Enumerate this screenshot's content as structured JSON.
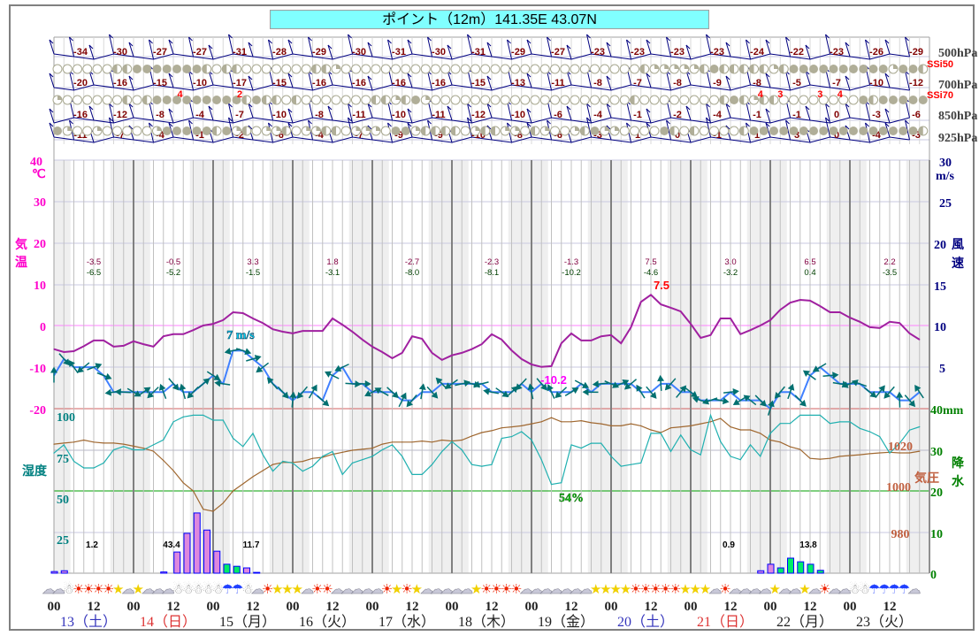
{
  "title": "ポイント（12m）141.35E 43.07N",
  "upper_air": {
    "levels": [
      {
        "label": "500hPa",
        "temps": [
          -34,
          -30,
          -27,
          -27,
          -31,
          -28,
          -29,
          -30,
          -31,
          -30,
          -31,
          -29,
          -27,
          -23,
          -23,
          -23,
          -23,
          -24,
          -22,
          -23,
          -26,
          -29
        ]
      },
      {
        "label": "700hPa",
        "temps": [
          -20,
          -16,
          -15,
          -10,
          -17,
          -15,
          -16,
          -16,
          -16,
          -16,
          -15,
          -13,
          -11,
          -8,
          -7,
          -8,
          -9,
          -8,
          -5,
          -7,
          -10,
          -12
        ]
      },
      {
        "label": "850hPa",
        "temps": [
          -16,
          -12,
          -8,
          -4,
          -7,
          -10,
          -8,
          -11,
          -10,
          -11,
          -12,
          -10,
          -6,
          -4,
          -1,
          -2,
          -4,
          -1,
          -1,
          0,
          -3,
          -6
        ]
      },
      {
        "label": "925hPa",
        "temps": [
          -11,
          -7,
          -4,
          -1,
          -2,
          -6,
          -4,
          -7,
          -9,
          -9,
          -10,
          -8,
          -6,
          -3,
          1,
          0,
          -1,
          1,
          3,
          0,
          -4,
          -3
        ]
      }
    ],
    "ssi_labels": [
      "SSi50",
      "SSi70"
    ],
    "stability_rows": [
      "oooooohhfffffffhohhooooooohhqoooooooooooooooooooooooooooooohqqqqqhfhhhhhqhffffffffffqffhooooo",
      "qoooooohohfffffffffhfhhohooooooohhqhfqoooooooooooooooooooohoooooooohfhqhhoooooooofhfffffffhfhhooooo",
      "fqooqoooooqfffffhfqhoqqhoqqhhoqqqoffqhhhhoqhhqqohqooqhfqqoooofhohoooohfffffffffffffffffhqhqhhq"
    ],
    "ssi_values": [
      {
        "hour": 38,
        "value": "4"
      },
      {
        "hour": 56,
        "value": "2"
      },
      {
        "hour": 213,
        "value": "4"
      },
      {
        "hour": 219,
        "value": "3"
      },
      {
        "hour": 231,
        "value": "3"
      },
      {
        "hour": 237,
        "value": "4"
      }
    ]
  },
  "axes": {
    "temp": {
      "ticks": [
        "40",
        "30",
        "20",
        "10",
        "0",
        "-10",
        "-20"
      ],
      "unit": "℃",
      "label": [
        "気",
        "温"
      ],
      "color": "#ff00cc"
    },
    "humidity": {
      "ticks": [
        "100",
        "75",
        "50",
        "25"
      ],
      "label": "湿度",
      "color": "#008080"
    },
    "wind": {
      "ticks": [
        "30",
        "25",
        "20",
        "15",
        "10",
        "5"
      ],
      "unit": "m/s",
      "label": [
        "風",
        "速"
      ],
      "color": "#000080"
    },
    "precip": {
      "ticks": [
        "40mm",
        "30",
        "20",
        "10",
        "0"
      ],
      "label": [
        "降",
        "水"
      ],
      "color": "#008000"
    },
    "pressure": {
      "ticks": [
        "1020",
        "1000",
        "980"
      ],
      "label": "気圧",
      "color": "#c06040"
    }
  },
  "annotations": {
    "max_temp": "7.5",
    "min_temp": "-10.2",
    "max_wind": "7 m/s",
    "min_humidity": "54%"
  },
  "daily": [
    {
      "max": "-3.5",
      "min": "-6.5",
      "precip": "1.2"
    },
    {
      "max": "-0.5",
      "min": "-5.2",
      "precip": "43.4"
    },
    {
      "max": "3.3",
      "min": "-1.5",
      "precip": "11.7"
    },
    {
      "max": "1.8",
      "min": "-3.1",
      "precip": ""
    },
    {
      "max": "-2.7",
      "min": "-8.0",
      "precip": ""
    },
    {
      "max": "-2.3",
      "min": "-8.1",
      "precip": ""
    },
    {
      "max": "-1.3",
      "min": "-10.2",
      "precip": ""
    },
    {
      "max": "7.5",
      "min": "-4.6",
      "precip": ""
    },
    {
      "max": "3.0",
      "min": "-3.2",
      "precip": "0.9"
    },
    {
      "max": "6.5",
      "min": "0.4",
      "precip": "13.8"
    },
    {
      "max": "2.2",
      "min": "-3.5",
      "precip": ""
    }
  ],
  "x_axis": {
    "hour_labels": [
      "00",
      "12"
    ],
    "days": [
      {
        "label": "13（土）",
        "color": "#3333bb"
      },
      {
        "label": "14（日）",
        "color": "#dd3333"
      },
      {
        "label": "15（月）",
        "color": "#202020"
      },
      {
        "label": "16（火）",
        "color": "#202020"
      },
      {
        "label": "17（水）",
        "color": "#202020"
      },
      {
        "label": "18（木）",
        "color": "#202020"
      },
      {
        "label": "19（金）",
        "color": "#202020"
      },
      {
        "label": "20（土）",
        "color": "#3333bb"
      },
      {
        "label": "21（日）",
        "color": "#dd3333"
      },
      {
        "label": "22（月）",
        "color": "#202020"
      },
      {
        "label": "23（火）",
        "color": "#202020"
      }
    ]
  },
  "weather_icons": "ccnssssmcmcccnnnnnuuncsmmmcsscccccsmsmcccccmsssscccccccmmmmsssssmmmcsccccmccmcsccnnuuuucccccsm",
  "chart_data": {
    "type": "line",
    "step_hours": 3,
    "xlim_hours": [
      0,
      264
    ],
    "series": [
      {
        "name": "temperature",
        "unit": "℃",
        "color": "#a020a0",
        "ylim": [
          -20,
          40
        ],
        "values": [
          -5.7,
          -6.4,
          -6.2,
          -5.0,
          -3.6,
          -3.6,
          -5.1,
          -4.9,
          -3.8,
          -4.5,
          -5.1,
          -2.6,
          -2.1,
          -2.1,
          -1.1,
          0,
          0.4,
          1.3,
          3.2,
          3.0,
          1.7,
          0.6,
          -0.9,
          -1.5,
          -1.9,
          -1.3,
          -1.3,
          -1.3,
          1.7,
          0.2,
          -1.5,
          -3.4,
          -5.1,
          -6.4,
          -7.9,
          -6.6,
          -2.6,
          -3.2,
          -6.6,
          -8.3,
          -7.2,
          -6.6,
          -5.7,
          -4.5,
          -2.1,
          -3.4,
          -6.0,
          -8.1,
          -9.4,
          -10.0,
          -9.8,
          -4.3,
          -1.9,
          -3.6,
          -3.6,
          -2.6,
          -2.3,
          -4.3,
          -0.4,
          5.7,
          7.4,
          5.1,
          4.3,
          3.4,
          0.4,
          -3.0,
          -2.3,
          1.7,
          1.7,
          -2.1,
          -1.1,
          0,
          1.3,
          3.8,
          5.5,
          6.2,
          6.0,
          4.7,
          3.2,
          3.2,
          1.9,
          0.9,
          -0.4,
          -0.6,
          0.9,
          0.6,
          -1.9,
          -3.4
        ]
      },
      {
        "name": "wind_speed",
        "unit": "m/s",
        "color": "#4080ff",
        "ylim": [
          0,
          30
        ],
        "values": [
          4,
          6,
          5,
          5,
          5,
          4,
          2,
          2,
          2,
          2,
          2,
          2,
          3,
          2,
          2,
          3,
          4,
          3,
          7,
          7,
          6,
          5,
          3,
          2,
          1,
          2,
          2,
          1,
          4,
          5,
          3,
          3,
          2,
          2,
          2,
          1,
          1,
          2,
          2,
          3,
          3,
          3,
          3,
          3,
          2,
          2,
          2,
          3,
          2,
          3,
          2,
          2,
          2,
          3,
          2,
          3,
          3,
          3,
          3,
          2,
          2,
          3,
          3,
          2,
          2,
          1,
          1,
          1,
          2,
          1,
          1,
          1,
          0,
          2,
          2,
          1,
          4,
          5,
          4,
          3,
          3,
          3,
          2,
          2,
          2,
          1,
          1,
          2
        ]
      },
      {
        "name": "humidity",
        "unit": "%",
        "color": "#20b0b0",
        "ylim": [
          0,
          100
        ],
        "values": [
          73,
          78,
          68,
          64,
          64,
          67,
          75,
          77,
          75,
          75,
          78,
          81,
          92,
          95,
          96,
          96,
          93,
          93,
          82,
          77,
          85,
          72,
          62,
          68,
          67,
          62,
          65,
          71,
          74,
          60,
          67,
          69,
          71,
          75,
          78,
          71,
          60,
          60,
          66,
          74,
          80,
          75,
          66,
          65,
          66,
          82,
          83,
          86,
          81,
          69,
          54,
          55,
          78,
          76,
          79,
          79,
          71,
          65,
          66,
          67,
          85,
          85,
          74,
          84,
          75,
          72,
          96,
          80,
          71,
          69,
          78,
          71,
          85,
          91,
          91,
          96,
          96,
          96,
          91,
          92,
          92,
          88,
          86,
          83,
          73,
          79,
          87,
          89
        ]
      },
      {
        "name": "pressure",
        "unit": "hPa",
        "color": "#a06830",
        "ylim": [
          960,
          1060
        ],
        "values": [
          1023,
          1023.5,
          1024,
          1025,
          1024,
          1023.5,
          1023.5,
          1023,
          1022,
          1021,
          1019.5,
          1015,
          1010,
          1004,
          1000,
          991,
          990,
          994,
          1000,
          1003.5,
          1007,
          1010,
          1013,
          1014,
          1014,
          1014.5,
          1016,
          1016.5,
          1018,
          1019,
          1020,
          1020.5,
          1021,
          1023,
          1024,
          1024,
          1024,
          1024.5,
          1024,
          1025,
          1024.5,
          1025,
          1027,
          1028.7,
          1029.6,
          1031,
          1031.5,
          1032,
          1033,
          1034,
          1036,
          1034,
          1034,
          1034.5,
          1033.5,
          1033,
          1032,
          1032,
          1033,
          1032,
          1030,
          1028.7,
          1031,
          1031.5,
          1032,
          1033,
          1034,
          1035.6,
          1031.5,
          1030,
          1030,
          1028.3,
          1025,
          1024,
          1021.7,
          1020.4,
          1016,
          1015.6,
          1016,
          1017,
          1017.4,
          1017.8,
          1018.3,
          1018.7,
          1019,
          1018.7,
          1018.7,
          1019.5
        ]
      }
    ],
    "precip_bars": [
      {
        "hour": 0,
        "mm": 0.4,
        "kind": "snow"
      },
      {
        "hour": 3,
        "mm": 0.6,
        "kind": "snow"
      },
      {
        "hour": 33,
        "mm": 0.3,
        "kind": "snow"
      },
      {
        "hour": 37,
        "mm": 5.2,
        "kind": "snow"
      },
      {
        "hour": 40,
        "mm": 9.8,
        "kind": "snow"
      },
      {
        "hour": 43,
        "mm": 14.8,
        "kind": "snow"
      },
      {
        "hour": 46,
        "mm": 10.6,
        "kind": "snow"
      },
      {
        "hour": 49,
        "mm": 5.4,
        "kind": "snow"
      },
      {
        "hour": 52,
        "mm": 2.2,
        "kind": "rain"
      },
      {
        "hour": 55,
        "mm": 1.7,
        "kind": "rain"
      },
      {
        "hour": 58,
        "mm": 1.3,
        "kind": "snow"
      },
      {
        "hour": 61,
        "mm": 0.2,
        "kind": "snow"
      },
      {
        "hour": 213,
        "mm": 0.6,
        "kind": "snow"
      },
      {
        "hour": 216,
        "mm": 2.2,
        "kind": "snow"
      },
      {
        "hour": 219,
        "mm": 1.3,
        "kind": "rain"
      },
      {
        "hour": 222,
        "mm": 3.7,
        "kind": "rain"
      },
      {
        "hour": 225,
        "mm": 2.8,
        "kind": "rain"
      },
      {
        "hour": 228,
        "mm": 2.2,
        "kind": "rain"
      },
      {
        "hour": 231,
        "mm": 0.7,
        "kind": "rain"
      }
    ],
    "colors": {
      "snow": "#dd88dd",
      "rain": "#00ee66",
      "bar_outline": "#0000ff"
    }
  }
}
